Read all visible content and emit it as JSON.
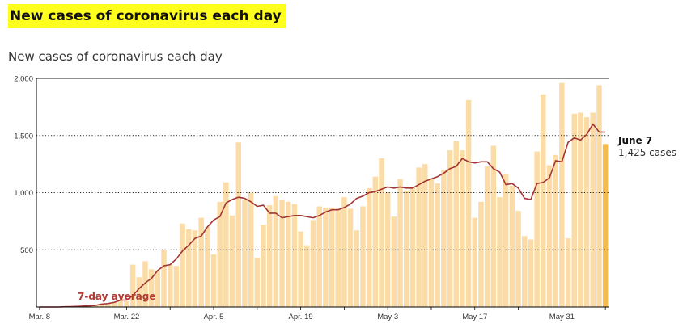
{
  "header": {
    "headline": "New cases of coronavirus each day",
    "subtitle": "New cases of coronavirus each day"
  },
  "chart_data": {
    "type": "bar",
    "x_start": "2020-03-08",
    "x": [
      "Mar. 8",
      "Mar. 9",
      "Mar. 10",
      "Mar. 11",
      "Mar. 12",
      "Mar. 13",
      "Mar. 14",
      "Mar. 15",
      "Mar. 16",
      "Mar. 17",
      "Mar. 18",
      "Mar. 19",
      "Mar. 20",
      "Mar. 21",
      "Mar. 22",
      "Mar. 23",
      "Mar. 24",
      "Mar. 25",
      "Mar. 26",
      "Mar. 27",
      "Mar. 28",
      "Mar. 29",
      "Mar. 30",
      "Mar. 31",
      "Apr. 1",
      "Apr. 2",
      "Apr. 3",
      "Apr. 4",
      "Apr. 5",
      "Apr. 6",
      "Apr. 7",
      "Apr. 8",
      "Apr. 9",
      "Apr. 10",
      "Apr. 11",
      "Apr. 12",
      "Apr. 13",
      "Apr. 14",
      "Apr. 15",
      "Apr. 16",
      "Apr. 17",
      "Apr. 18",
      "Apr. 19",
      "Apr. 20",
      "Apr. 21",
      "Apr. 22",
      "Apr. 23",
      "Apr. 24",
      "Apr. 25",
      "Apr. 26",
      "Apr. 27",
      "Apr. 28",
      "Apr. 29",
      "Apr. 30",
      "May 1",
      "May 2",
      "May 3",
      "May 4",
      "May 5",
      "May 6",
      "May 7",
      "May 8",
      "May 9",
      "May 10",
      "May 11",
      "May 12",
      "May 13",
      "May 14",
      "May 15",
      "May 16",
      "May 17",
      "May 18",
      "May 19",
      "May 20",
      "May 21",
      "May 22",
      "May 23",
      "May 24",
      "May 25",
      "May 26",
      "May 27",
      "May 28",
      "May 29",
      "May 30",
      "May 31",
      "June 1",
      "June 2",
      "June 3",
      "June 4",
      "June 5",
      "June 6",
      "June 7"
    ],
    "series": [
      {
        "name": "",
        "type": "bar",
        "values": [
          0,
          0,
          0,
          0,
          2,
          3,
          5,
          8,
          10,
          14,
          25,
          30,
          40,
          60,
          50,
          370,
          260,
          400,
          330,
          320,
          500,
          370,
          360,
          730,
          680,
          670,
          780,
          700,
          460,
          920,
          1090,
          800,
          1440,
          940,
          1000,
          430,
          720,
          890,
          970,
          940,
          920,
          900,
          660,
          540,
          760,
          880,
          870,
          870,
          860,
          960,
          860,
          670,
          880,
          1040,
          1140,
          1300,
          1000,
          790,
          1120,
          1020,
          1040,
          1220,
          1250,
          1120,
          1080,
          1200,
          1370,
          1450,
          1370,
          1810,
          780,
          920,
          1230,
          1410,
          960,
          1160,
          1060,
          840,
          620,
          590,
          1360,
          1860,
          1240,
          1330,
          1960,
          600,
          1690,
          1700,
          1660,
          1700,
          1940,
          1425
        ]
      },
      {
        "name": "7-day average",
        "type": "line",
        "values": [
          0,
          0,
          0,
          0,
          2,
          3,
          5,
          8,
          10,
          14,
          25,
          30,
          40,
          60,
          60,
          100,
          160,
          210,
          250,
          320,
          360,
          370,
          420,
          490,
          540,
          600,
          620,
          700,
          760,
          790,
          910,
          940,
          960,
          950,
          920,
          880,
          890,
          820,
          820,
          780,
          790,
          800,
          800,
          790,
          780,
          800,
          830,
          850,
          850,
          870,
          900,
          950,
          970,
          1000,
          1010,
          1030,
          1050,
          1040,
          1050,
          1040,
          1040,
          1070,
          1100,
          1120,
          1140,
          1170,
          1210,
          1230,
          1300,
          1270,
          1260,
          1270,
          1270,
          1210,
          1180,
          1070,
          1080,
          1040,
          950,
          940,
          1080,
          1090,
          1130,
          1280,
          1270,
          1440,
          1480,
          1460,
          1510,
          1600,
          1530,
          1530
        ]
      }
    ],
    "ylim": [
      0,
      2000
    ],
    "y_ticks": [
      2000,
      1500,
      1000,
      500
    ],
    "y_tick_labels": [
      "2,000",
      "1,500",
      "1,000",
      "500"
    ],
    "x_ticks": [
      "Mar. 8",
      "Mar. 22",
      "Apr. 5",
      "Apr. 19",
      "May 3",
      "May 17",
      "May 31"
    ],
    "grid": true,
    "annotations": {
      "line_label": "7-day average",
      "last_date": "June 7",
      "last_value": "1,425 cases"
    },
    "colors": {
      "bar": "#fbdca6",
      "bar_highlight": "#f6bb4e",
      "line": "#a23533",
      "avg_label": "#b23a32",
      "grid": "#222222"
    }
  }
}
